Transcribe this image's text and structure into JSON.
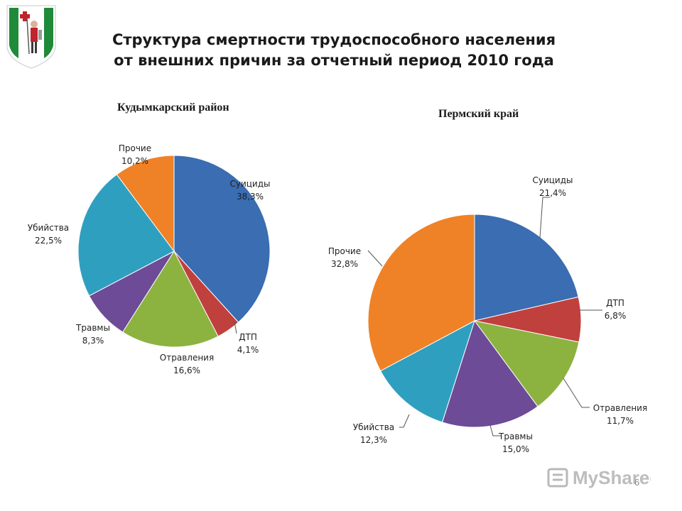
{
  "slide": {
    "title_line1": "Структура смертности трудоспособного населения",
    "title_line2": "от внешних причин за отчетный период 2010 года",
    "page_number": "6",
    "watermark": "MyShared"
  },
  "colors": {
    "suicides": "#3a6db1",
    "road": "#c0403d",
    "poisoning": "#8cb240",
    "injuries": "#6d4b97",
    "murders": "#2f9fc0",
    "other": "#ef8226"
  },
  "chart_data": [
    {
      "type": "pie",
      "title": "Кудымкарский район",
      "slices": [
        {
          "label": "Суициды",
          "value": 38.3,
          "value_label": "38,3%",
          "color": "#3a6db1"
        },
        {
          "label": "ДТП",
          "value": 4.1,
          "value_label": "4,1%",
          "color": "#c0403d"
        },
        {
          "label": "Отравления",
          "value": 16.6,
          "value_label": "16,6%",
          "color": "#8cb240"
        },
        {
          "label": "Травмы",
          "value": 8.3,
          "value_label": "8,3%",
          "color": "#6d4b97"
        },
        {
          "label": "Убийства",
          "value": 22.5,
          "value_label": "22,5%",
          "color": "#2f9fc0"
        },
        {
          "label": "Прочие",
          "value": 10.2,
          "value_label": "10,2%",
          "color": "#ef8226"
        }
      ]
    },
    {
      "type": "pie",
      "title": "Пермский край",
      "slices": [
        {
          "label": "Суициды",
          "value": 21.4,
          "value_label": "21,4%",
          "color": "#3a6db1"
        },
        {
          "label": "ДТП",
          "value": 6.8,
          "value_label": "6,8%",
          "color": "#c0403d"
        },
        {
          "label": "Отравления",
          "value": 11.7,
          "value_label": "11,7%",
          "color": "#8cb240"
        },
        {
          "label": "Травмы",
          "value": 15.0,
          "value_label": "15,0%",
          "color": "#6d4b97"
        },
        {
          "label": "Убийства",
          "value": 12.3,
          "value_label": "12,3%",
          "color": "#2f9fc0"
        },
        {
          "label": "Прочие",
          "value": 32.8,
          "value_label": "32,8%",
          "color": "#ef8226"
        }
      ]
    }
  ]
}
